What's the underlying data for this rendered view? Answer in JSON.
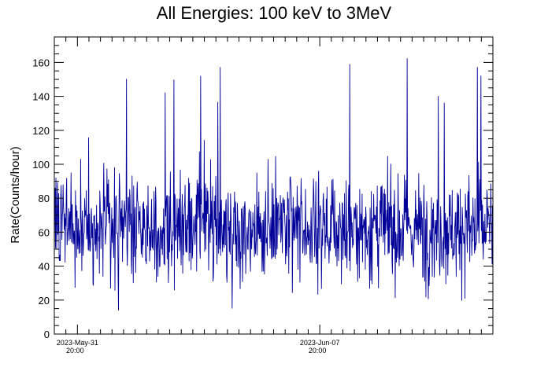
{
  "chart_data": {
    "type": "line",
    "title": "All Energies:  100 keV to 3MeV",
    "ylabel": "Rate(Counts/hour)",
    "xlabel": "",
    "ylim": [
      0,
      175
    ],
    "y_ticks": [
      0,
      20,
      40,
      60,
      80,
      100,
      120,
      140,
      160
    ],
    "x_ticks": [
      {
        "date": "2023-May-31",
        "time": "20:00",
        "hours_from_start": 16
      },
      {
        "date": "2023-Jun-07",
        "time": "20:00",
        "hours_from_start": 184
      }
    ],
    "x_range_hours": [
      0,
      304
    ],
    "series": [
      {
        "color": "#000099",
        "hourly_rate_mean": 62,
        "hourly_rate_range": [
          2,
          168
        ]
      }
    ],
    "grid": false,
    "legend": "none"
  }
}
